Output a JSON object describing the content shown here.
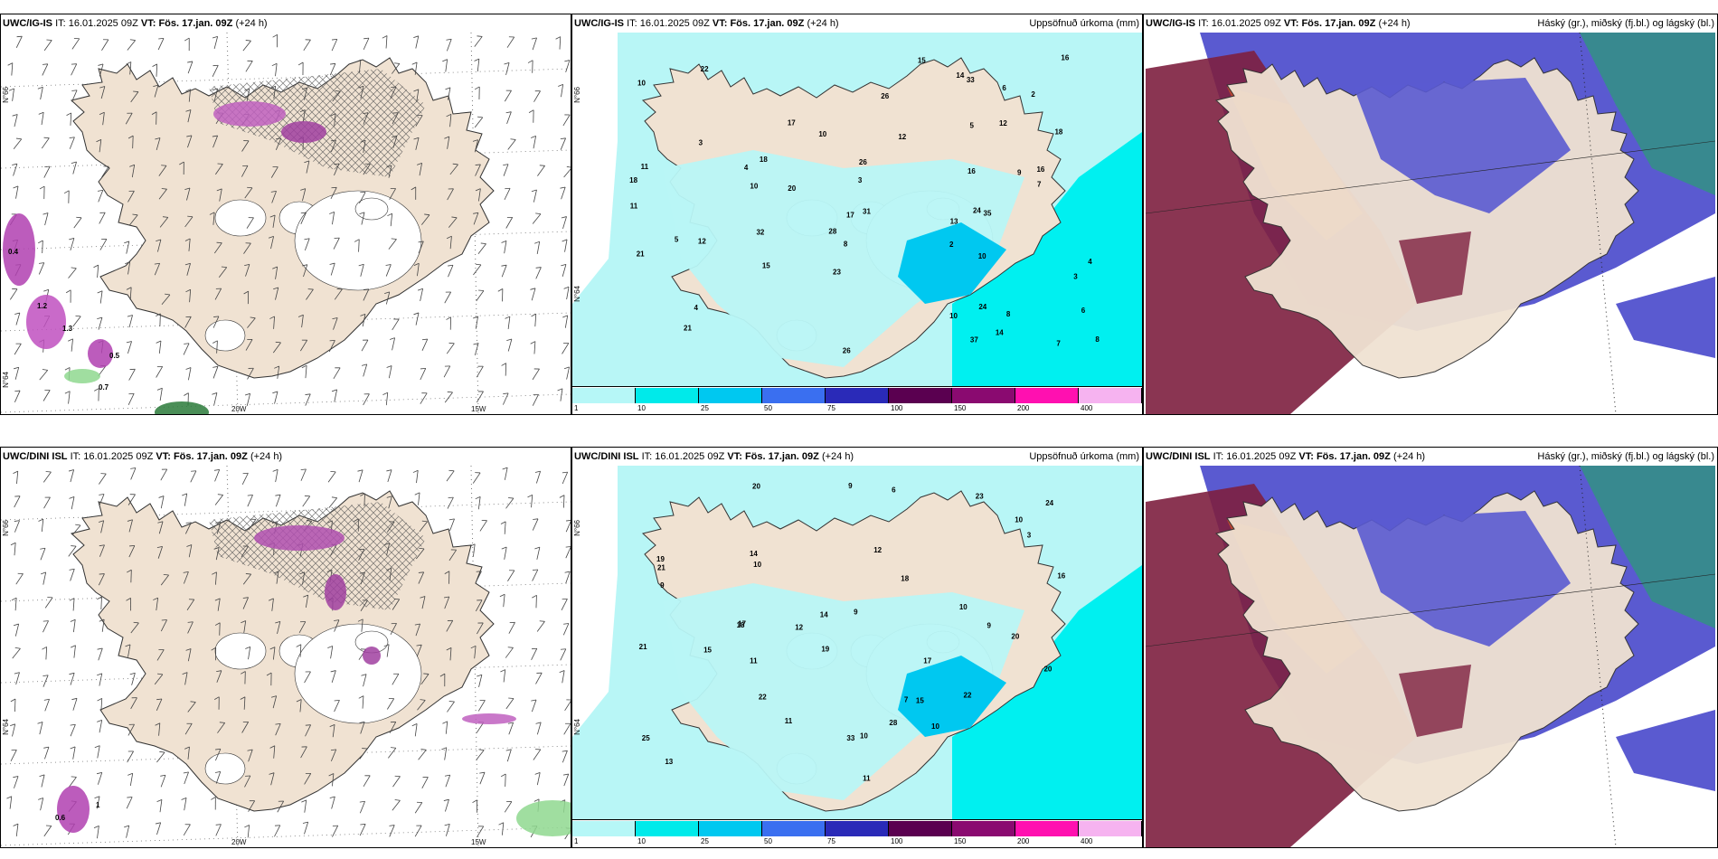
{
  "panels": [
    {
      "id": "ig-wind",
      "model": "UWC/IG-IS",
      "it_label": "IT:",
      "it": "16.01.2025 09Z",
      "vt_label": "VT: Fös. 17.jan. 09Z",
      "lead": "(+24 h)",
      "right": "",
      "lat1": "N°66",
      "lat2": "N°64",
      "lon1": "20W",
      "lon2": "15W"
    },
    {
      "id": "ig-precip",
      "model": "UWC/IG-IS",
      "it_label": "IT:",
      "it": "16.01.2025 09Z",
      "vt_label": "VT: Fös. 17.jan. 09Z",
      "lead": "(+24 h)",
      "right": "Uppsöfnuð úrkoma (mm)",
      "lat1": "N°66",
      "lat2": "N°64"
    },
    {
      "id": "ig-cloud",
      "model": "UWC/IG-IS",
      "it_label": "IT:",
      "it": "16.01.2025 09Z",
      "vt_label": "VT: Fös. 17.jan. 09Z",
      "lead": "(+24 h)",
      "right": "Háský (gr.), miðský (fj.bl.) og lágský (bl.)"
    },
    {
      "id": "dini-wind",
      "model": "UWC/DINI ISL",
      "it_label": "IT:",
      "it": "16.01.2025 09Z",
      "vt_label": "VT: Fös. 17.jan. 09Z",
      "lead": "(+24 h)",
      "right": "",
      "lat1": "N°66",
      "lat2": "N°64",
      "lon1": "20W",
      "lon2": "15W"
    },
    {
      "id": "dini-precip",
      "model": "UWC/DINI ISL",
      "it_label": "IT:",
      "it": "16.01.2025 09Z",
      "vt_label": "VT: Fös. 17.jan. 09Z",
      "lead": "(+24 h)",
      "right": "Uppsöfnuð úrkoma (mm)",
      "lat1": "N°66",
      "lat2": "N°64"
    },
    {
      "id": "dini-cloud",
      "model": "UWC/DINI ISL",
      "it_label": "IT:",
      "it": "16.01.2025 09Z",
      "vt_label": "VT: Fös. 17.jan. 09Z",
      "lead": "(+24 h)",
      "right": "Háský (gr.), miðský (fj.bl.) og lágský (bl.)"
    }
  ],
  "precip_legend": {
    "ticks": [
      "1",
      "10",
      "25",
      "50",
      "75",
      "100",
      "150",
      "200",
      "400"
    ],
    "colors": [
      "#b6f7f7",
      "#00eaea",
      "#00c8f0",
      "#3a6ff0",
      "#2a2ab8",
      "#5a0050",
      "#8a0a70",
      "#ff10b0",
      "#f6b3f0"
    ]
  },
  "colors": {
    "land": "#f0e2d2",
    "sea_precip": "#b8f6f6",
    "cloud_low": "#5a5ad0",
    "cloud_high": "#7d1f3f",
    "cloud_mid": "#c8502a"
  },
  "numbers": {
    "ig-precip": [
      "2",
      "4",
      "9",
      "3",
      "10",
      "12",
      "16",
      "26",
      "6",
      "14",
      "24",
      "13",
      "21",
      "10",
      "15",
      "7",
      "2",
      "5",
      "6",
      "10",
      "8",
      "11",
      "16",
      "14",
      "7",
      "4",
      "3",
      "5",
      "8",
      "12",
      "18",
      "15",
      "11",
      "24",
      "20",
      "21",
      "12",
      "31",
      "35",
      "37",
      "28",
      "32",
      "26",
      "26",
      "18",
      "17",
      "16",
      "18",
      "17",
      "22",
      "23",
      "4",
      "3",
      "8",
      "10",
      "10",
      "33"
    ],
    "dini-precip": [
      "6",
      "9",
      "10",
      "7",
      "12",
      "17",
      "10",
      "24",
      "22",
      "15",
      "19",
      "17",
      "22",
      "14",
      "12",
      "10",
      "9",
      "16",
      "18",
      "11",
      "23",
      "20",
      "13",
      "11",
      "9",
      "28",
      "25",
      "33",
      "21",
      "15",
      "14",
      "20",
      "19",
      "18",
      "20",
      "21",
      "10",
      "10",
      "11",
      "3",
      "9"
    ],
    "ig-wind": [
      "0.4",
      "1.2",
      "1.3",
      "0.5",
      "0.7"
    ],
    "dini-wind": [
      "1",
      "0.6"
    ]
  }
}
